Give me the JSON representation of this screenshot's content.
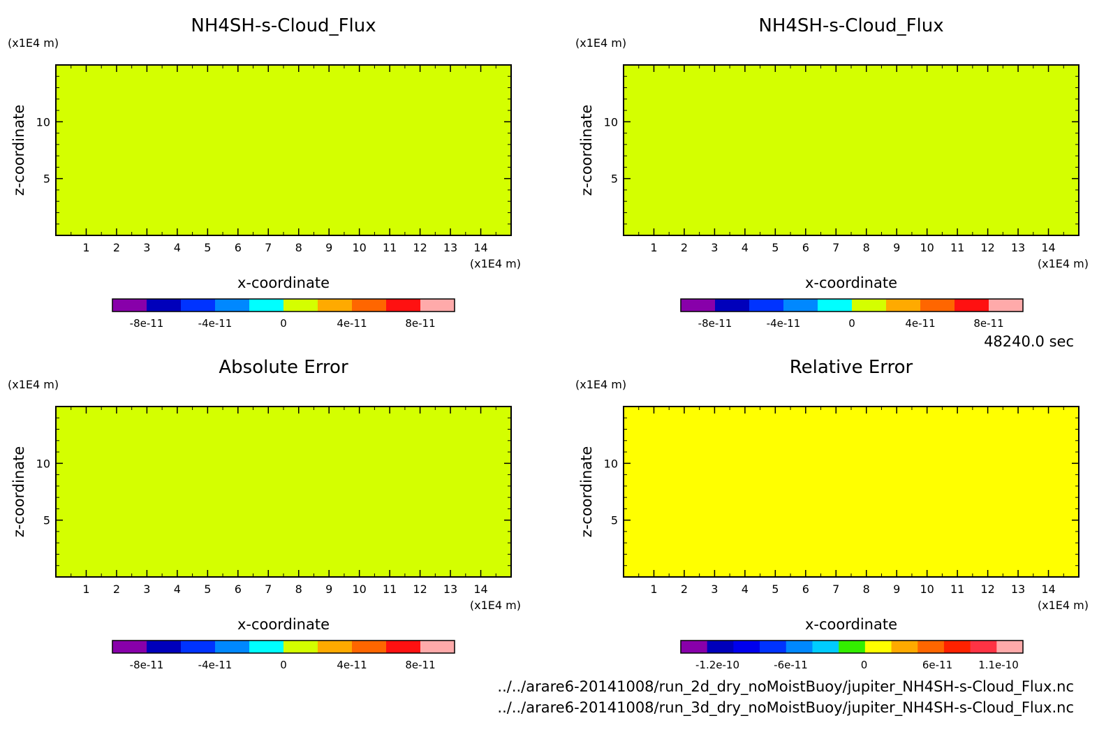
{
  "time_label": "48240.0 sec",
  "files": [
    "../../arare6-20141008/run_2d_dry_noMoistBuoy/jupiter_NH4SH-s-Cloud_Flux.nc",
    "../../arare6-20141008/run_3d_dry_noMoistBuoy/jupiter_NH4SH-s-Cloud_Flux.nc"
  ],
  "chart_data": [
    {
      "type": "heatmap",
      "title": "NH4SH-s-Cloud_Flux",
      "xlabel": "x-coordinate",
      "ylabel": "z-coordinate",
      "x_unit": "(x1E4 m)",
      "y_unit": "(x1E4 m)",
      "xlim": [
        0,
        15
      ],
      "ylim": [
        0,
        15
      ],
      "x_ticks": [
        1,
        2,
        3,
        4,
        5,
        6,
        7,
        8,
        9,
        10,
        11,
        12,
        13,
        14
      ],
      "y_ticks": [
        5,
        10
      ],
      "field_color": "#d4ff00",
      "colorbar": {
        "colors": [
          "#8800aa",
          "#0000bb",
          "#0033ff",
          "#0088ff",
          "#00ffff",
          "#d4ff00",
          "#ffaa00",
          "#ff6600",
          "#ff1111",
          "#ffaaaa"
        ],
        "tick_values": [
          -8e-11,
          -4e-11,
          0,
          4e-11,
          8e-11
        ],
        "tick_labels": [
          "-8e-11",
          "-4e-11",
          "0",
          "4e-11",
          "8e-11"
        ],
        "range": [
          -1e-10,
          1e-10
        ]
      }
    },
    {
      "type": "heatmap",
      "title": "NH4SH-s-Cloud_Flux",
      "xlabel": "x-coordinate",
      "ylabel": "z-coordinate",
      "x_unit": "(x1E4 m)",
      "y_unit": "(x1E4 m)",
      "xlim": [
        0,
        15
      ],
      "ylim": [
        0,
        15
      ],
      "x_ticks": [
        1,
        2,
        3,
        4,
        5,
        6,
        7,
        8,
        9,
        10,
        11,
        12,
        13,
        14
      ],
      "y_ticks": [
        5,
        10
      ],
      "field_color": "#d4ff00",
      "colorbar": {
        "colors": [
          "#8800aa",
          "#0000bb",
          "#0033ff",
          "#0088ff",
          "#00ffff",
          "#d4ff00",
          "#ffaa00",
          "#ff6600",
          "#ff1111",
          "#ffaaaa"
        ],
        "tick_values": [
          -8e-11,
          -4e-11,
          0,
          4e-11,
          8e-11
        ],
        "tick_labels": [
          "-8e-11",
          "-4e-11",
          "0",
          "4e-11",
          "8e-11"
        ],
        "range": [
          -1e-10,
          1e-10
        ]
      }
    },
    {
      "type": "heatmap",
      "title": "Absolute Error",
      "xlabel": "x-coordinate",
      "ylabel": "z-coordinate",
      "x_unit": "(x1E4 m)",
      "y_unit": "(x1E4 m)",
      "xlim": [
        0,
        15
      ],
      "ylim": [
        0,
        15
      ],
      "x_ticks": [
        1,
        2,
        3,
        4,
        5,
        6,
        7,
        8,
        9,
        10,
        11,
        12,
        13,
        14
      ],
      "y_ticks": [
        5,
        10
      ],
      "field_color": "#d4ff00",
      "colorbar": {
        "colors": [
          "#8800aa",
          "#0000bb",
          "#0033ff",
          "#0088ff",
          "#00ffff",
          "#d4ff00",
          "#ffaa00",
          "#ff6600",
          "#ff1111",
          "#ffaaaa"
        ],
        "tick_values": [
          -8e-11,
          -4e-11,
          0,
          4e-11,
          8e-11
        ],
        "tick_labels": [
          "-8e-11",
          "-4e-11",
          "0",
          "4e-11",
          "8e-11"
        ],
        "range": [
          -1e-10,
          1e-10
        ]
      }
    },
    {
      "type": "heatmap",
      "title": "Relative Error",
      "xlabel": "x-coordinate",
      "ylabel": "z-coordinate",
      "x_unit": "(x1E4 m)",
      "y_unit": "(x1E4 m)",
      "xlim": [
        0,
        15
      ],
      "ylim": [
        0,
        15
      ],
      "x_ticks": [
        1,
        2,
        3,
        4,
        5,
        6,
        7,
        8,
        9,
        10,
        11,
        12,
        13,
        14
      ],
      "y_ticks": [
        5,
        10
      ],
      "field_color": "#ffff00",
      "colorbar": {
        "colors": [
          "#8800aa",
          "#0000bb",
          "#0000ee",
          "#0033ff",
          "#0088ff",
          "#00ccff",
          "#33ee00",
          "#ffff00",
          "#ffaa00",
          "#ff6600",
          "#ff2200",
          "#ff3344",
          "#ffaaaa"
        ],
        "tick_values": [
          -1.2e-10,
          -6e-11,
          0,
          6e-11,
          1.1e-10
        ],
        "tick_labels": [
          "-1.2e-10",
          "-6e-11",
          "0",
          "6e-11",
          "1.1e-10"
        ],
        "range": [
          -1.5e-10,
          1.3e-10
        ]
      }
    }
  ]
}
